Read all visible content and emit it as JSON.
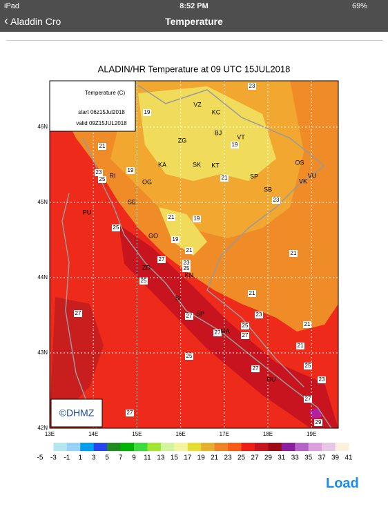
{
  "status_bar": {
    "device": "iPad",
    "time": "8:52 PM",
    "battery": "69%"
  },
  "nav_bar": {
    "back": "Aladdin Cro",
    "title": "Temperature"
  },
  "map": {
    "title": "ALADIN/HR Temperature at 09 UTC 15JUL2018",
    "info": {
      "heading": "Temperature (C)",
      "start": "start 06z15Jul2018",
      "valid": "valid 09Z15JUL2018"
    },
    "credit": "©DHMZ",
    "lat_labels": [
      "46N",
      "45N",
      "44N",
      "43N",
      "42N"
    ],
    "lon_labels": [
      "13E",
      "14E",
      "15E",
      "16E",
      "17E",
      "18E",
      "19E"
    ],
    "temperature_labels": [
      23,
      19,
      21,
      19,
      23,
      25,
      19,
      21,
      23,
      21,
      19,
      25,
      19,
      21,
      27,
      23,
      25,
      21,
      25,
      21,
      27,
      27,
      23,
      25,
      27,
      27,
      21,
      21,
      25,
      25,
      27,
      23,
      27,
      27,
      29
    ],
    "place_labels": [
      "VZ",
      "KC",
      "ZG",
      "BJ",
      "VT",
      "KA",
      "SK",
      "KT",
      "OS",
      "VK",
      "VU",
      "SP",
      "SB",
      "RI",
      "OG",
      "SE",
      "PU",
      "GO",
      "ZD",
      "KN",
      "SI",
      "SP",
      "MA",
      "DU"
    ]
  },
  "legend": {
    "ticks": [
      -5,
      -3,
      -1,
      1,
      3,
      5,
      7,
      9,
      11,
      13,
      15,
      17,
      19,
      21,
      23,
      25,
      27,
      29,
      31,
      33,
      35,
      37,
      39,
      41
    ],
    "colors": [
      "#ffffff",
      "#b4e6f0",
      "#96d2fa",
      "#00a0f0",
      "#2846f0",
      "#1e8c1e",
      "#00b400",
      "#3cdc3c",
      "#a0e632",
      "#d2f5a0",
      "#f5f5a0",
      "#e6dc32",
      "#e6af2d",
      "#f08228",
      "#fa5a14",
      "#f01e14",
      "#c8141e",
      "#a00a14",
      "#8c1ea0",
      "#b464c8",
      "#dca0dc",
      "#e6c8e6",
      "#faf0dc"
    ]
  },
  "load_button": "Load"
}
